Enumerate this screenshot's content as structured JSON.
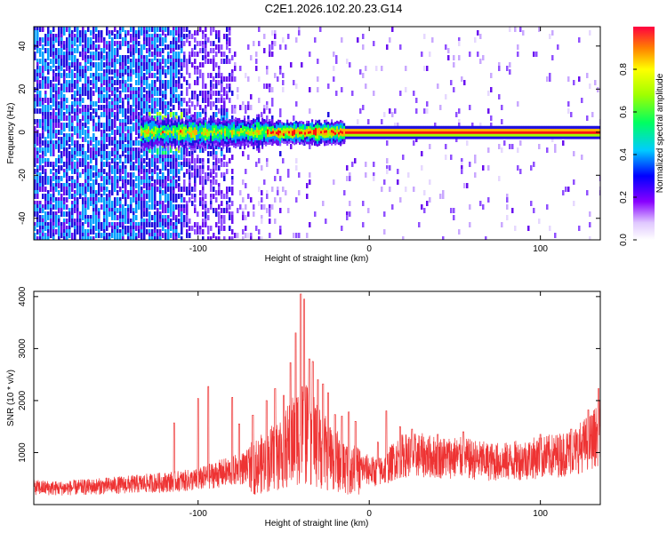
{
  "title": "C2E1.2026.102.20.23.G14",
  "chart_data": [
    {
      "type": "heatmap",
      "xlabel": "Height of straight line (km)",
      "ylabel": "Frequency (Hz)",
      "xlim": [
        -196,
        135
      ],
      "ylim": [
        -50,
        49
      ],
      "x_ticks": [
        -100,
        0,
        100
      ],
      "x_tick_labels": [
        "-100",
        "0",
        "100"
      ],
      "y_ticks": [
        -40,
        -20,
        0,
        20,
        40
      ],
      "y_tick_labels": [
        "-40",
        "-20",
        "0",
        "20",
        "40"
      ],
      "colorbar": {
        "label": "Normalized spectral amplitude",
        "range": [
          0,
          1
        ],
        "ticks": [
          0,
          0.2,
          0.4,
          0.6,
          0.8
        ],
        "tick_labels": [
          "0.0",
          "0.2",
          "0.4",
          "0.6",
          "0.8"
        ],
        "palette": "rainbow"
      },
      "ridge_frequency": 0,
      "colors": {
        "low": "#e8dcff",
        "mid": "#7a1cf0",
        "peak": "#ff0000",
        "band_green": "#00ff40"
      }
    },
    {
      "type": "line",
      "xlabel": "Height of straight line (km)",
      "ylabel": "SNR (10 * v/v)",
      "xlim": [
        -196,
        135
      ],
      "ylim": [
        0,
        4100
      ],
      "x_ticks": [
        -100,
        0,
        100
      ],
      "x_tick_labels": [
        "-100",
        "0",
        "100"
      ],
      "y_ticks": [
        1000,
        2000,
        3000,
        4000
      ],
      "y_tick_labels": [
        "1000",
        "2000",
        "3000",
        "4000"
      ],
      "series": [
        {
          "color": "#ee3333",
          "envelope_x": [
            -196,
            -180,
            -160,
            -140,
            -120,
            -100,
            -90,
            -80,
            -70,
            -60,
            -50,
            -45,
            -40,
            -35,
            -30,
            -25,
            -20,
            -15,
            -10,
            -5,
            0,
            5,
            10,
            15,
            20,
            30,
            40,
            50,
            60,
            70,
            80,
            90,
            100,
            110,
            120,
            130,
            135
          ],
          "envelope_y": [
            400,
            380,
            420,
            470,
            520,
            580,
            700,
            780,
            900,
            1100,
            1400,
            1600,
            1900,
            1700,
            1500,
            1300,
            1150,
            1000,
            900,
            850,
            800,
            750,
            850,
            1050,
            1150,
            1150,
            1100,
            1100,
            1050,
            1000,
            1000,
            1050,
            1100,
            1150,
            1250,
            1500,
            1700
          ],
          "spikes": [
            {
              "x": -114,
              "y": 1570
            },
            {
              "x": -100,
              "y": 2040
            },
            {
              "x": -94,
              "y": 2270
            },
            {
              "x": -80,
              "y": 2060
            },
            {
              "x": -76,
              "y": 1550
            },
            {
              "x": -68,
              "y": 1720
            },
            {
              "x": -60,
              "y": 2000
            },
            {
              "x": -55,
              "y": 2230
            },
            {
              "x": -50,
              "y": 2100
            },
            {
              "x": -46,
              "y": 2730
            },
            {
              "x": -43,
              "y": 3300
            },
            {
              "x": -40,
              "y": 4050
            },
            {
              "x": -38,
              "y": 3950
            },
            {
              "x": -35,
              "y": 2800
            },
            {
              "x": -33,
              "y": 2750
            },
            {
              "x": -30,
              "y": 2400
            },
            {
              "x": -27,
              "y": 2320
            },
            {
              "x": -24,
              "y": 2150
            },
            {
              "x": -20,
              "y": 1730
            },
            {
              "x": -16,
              "y": 1700
            },
            {
              "x": -12,
              "y": 1780
            },
            {
              "x": -8,
              "y": 1600
            },
            {
              "x": 5,
              "y": 1200
            },
            {
              "x": 10,
              "y": 1800
            },
            {
              "x": 18,
              "y": 1500
            },
            {
              "x": 25,
              "y": 1450
            },
            {
              "x": 40,
              "y": 1350
            },
            {
              "x": 55,
              "y": 1400
            },
            {
              "x": 100,
              "y": 1350
            },
            {
              "x": 118,
              "y": 1450
            },
            {
              "x": 128,
              "y": 1820
            },
            {
              "x": 134,
              "y": 2230
            }
          ]
        }
      ]
    }
  ]
}
